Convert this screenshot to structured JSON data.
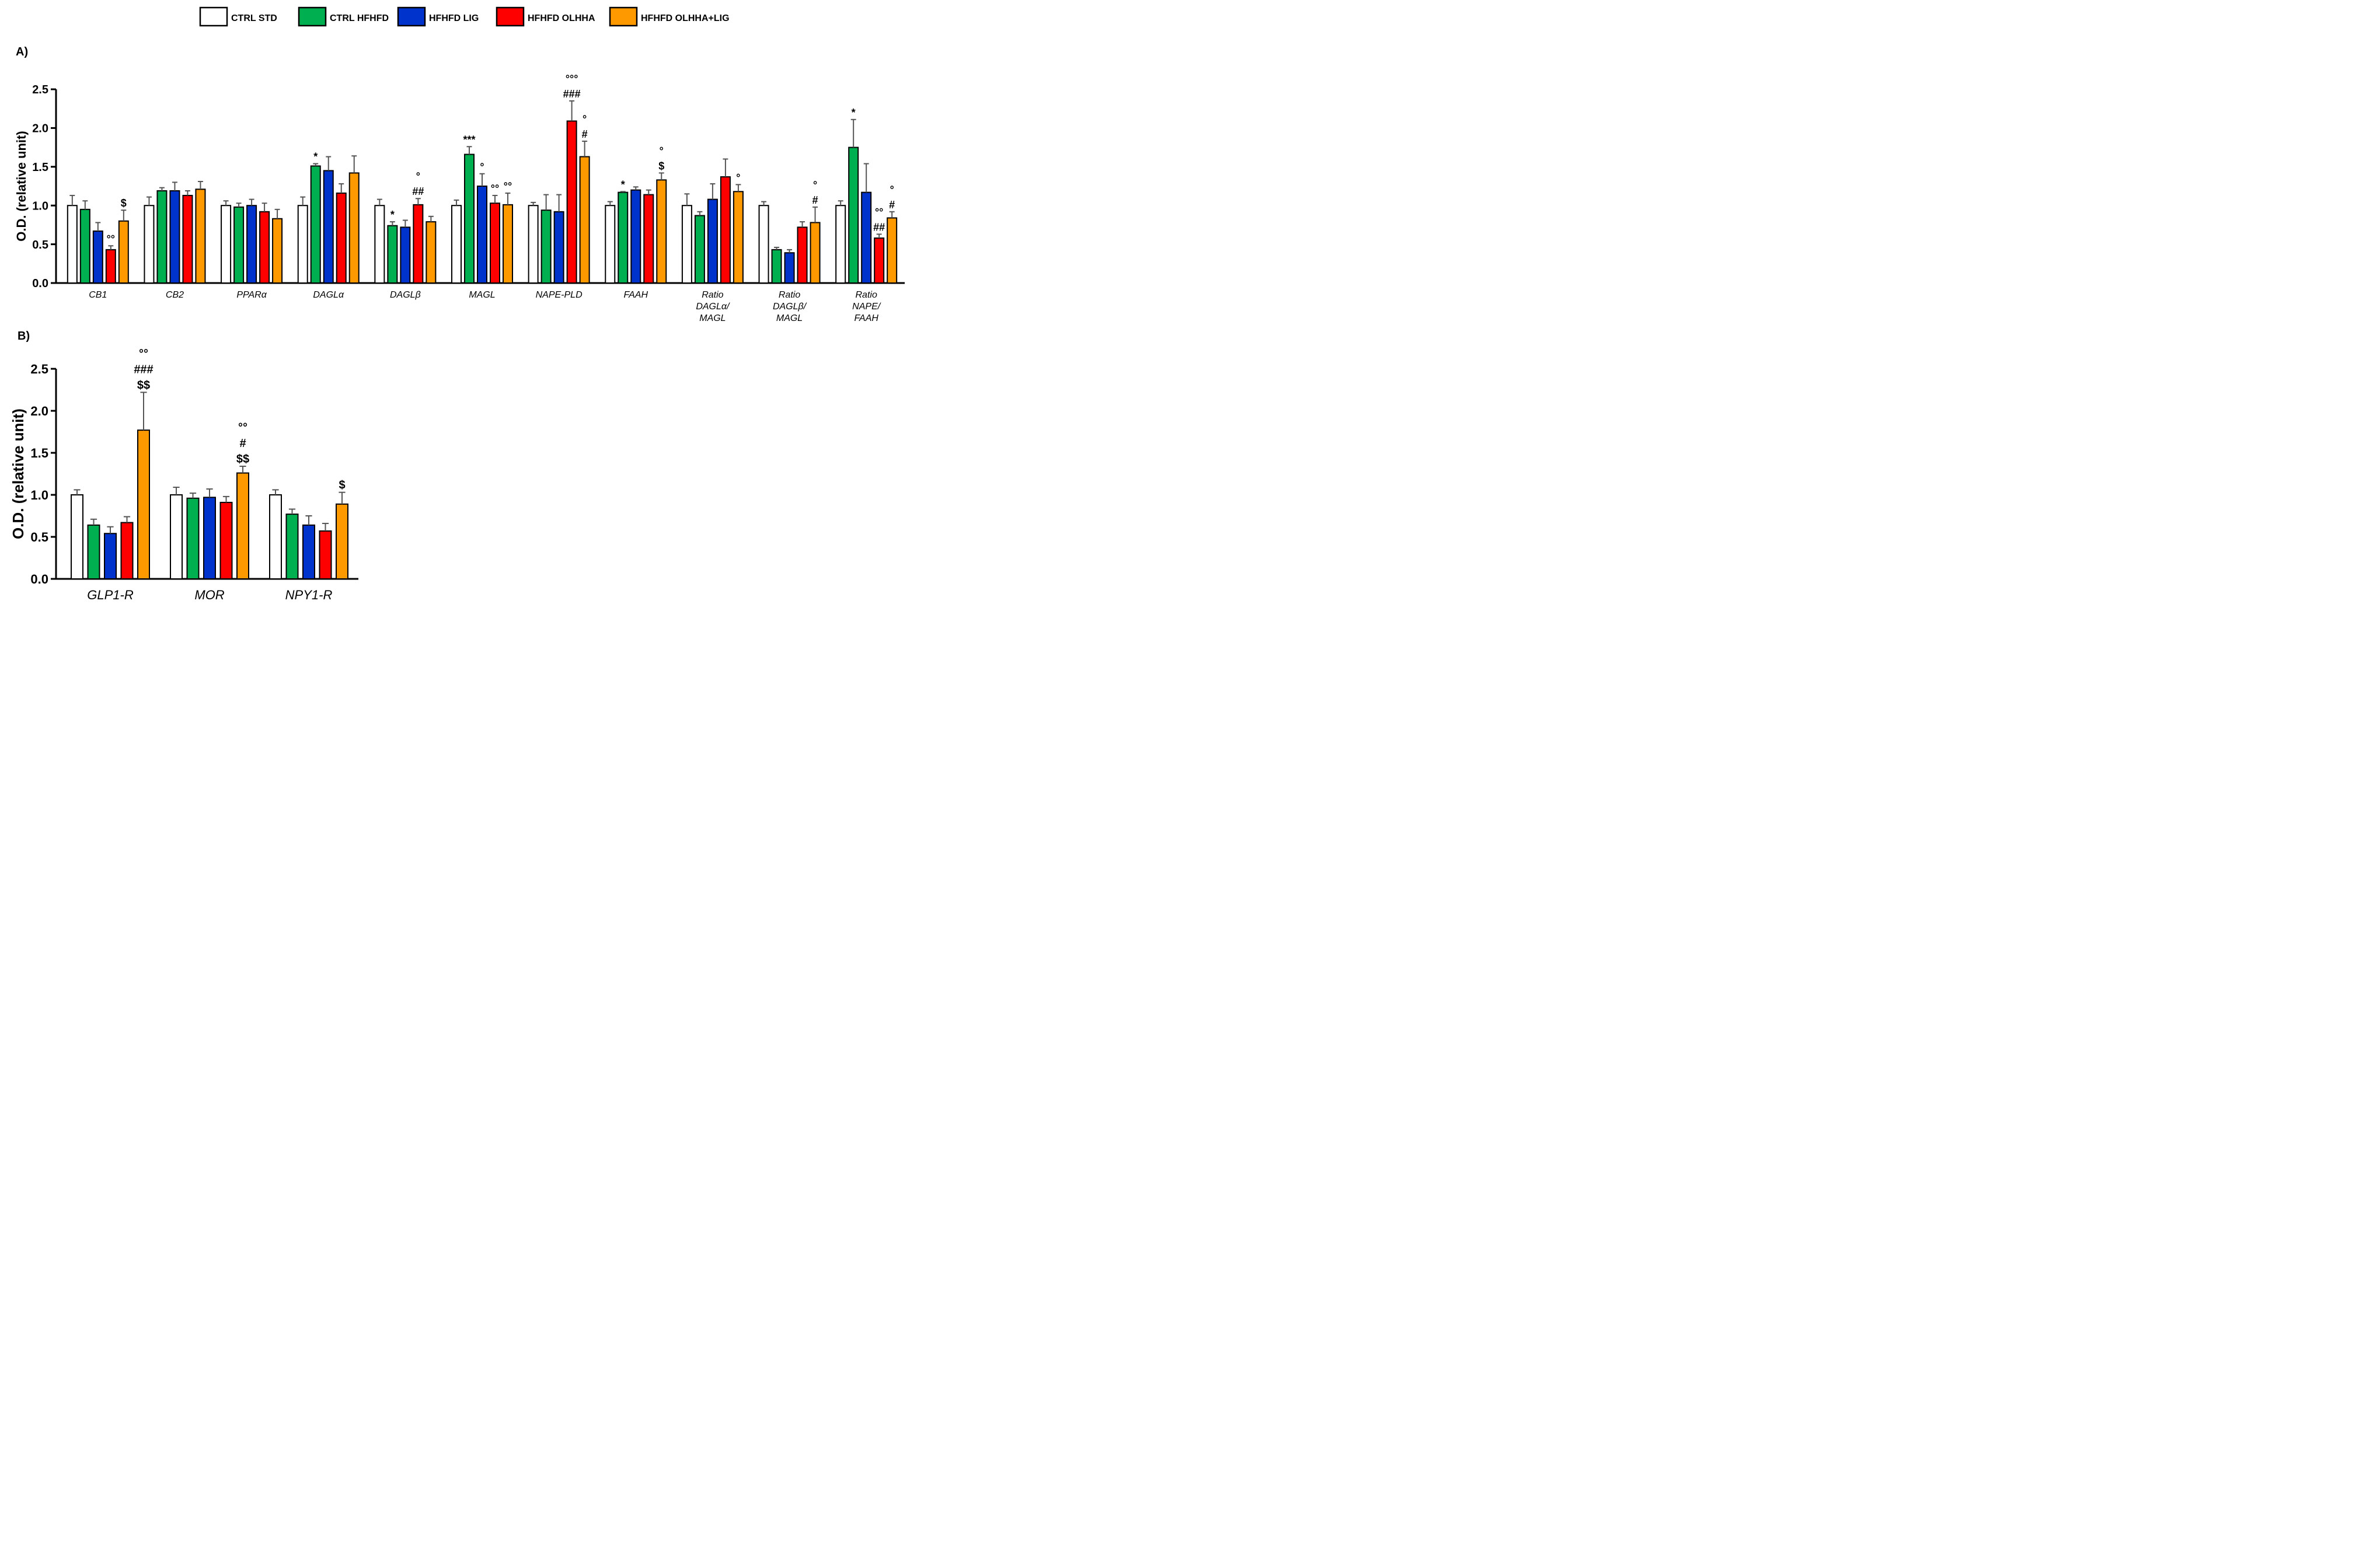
{
  "legend": [
    {
      "label": "CTRL STD",
      "color": "#ffffff"
    },
    {
      "label": "CTRL HFHFD",
      "color": "#00b050"
    },
    {
      "label": "HFHFD LIG",
      "color": "#0033cc"
    },
    {
      "label": "HFHFD OLHHA",
      "color": "#ff0000"
    },
    {
      "label": "HFHFD OLHHA+LIG",
      "color": "#ff9900"
    }
  ],
  "chart_data": [
    {
      "panel": "A)",
      "type": "bar",
      "ylabel": "O.D. (relative unit)",
      "ylim": [
        0,
        2.5
      ],
      "yticks": [
        "0.0",
        "0.5",
        "1.0",
        "1.5",
        "2.0",
        "2.5"
      ],
      "categories": [
        [
          "CB1"
        ],
        [
          "CB2"
        ],
        [
          "PPARα"
        ],
        [
          "DAGLα"
        ],
        [
          "DAGLβ"
        ],
        [
          "MAGL"
        ],
        [
          "NAPE-PLD"
        ],
        [
          "FAAH"
        ],
        [
          "Ratio",
          "DAGLα/",
          "MAGL"
        ],
        [
          "Ratio",
          "DAGLβ/",
          "MAGL"
        ],
        [
          "Ratio",
          "NAPE/",
          "FAAH"
        ]
      ],
      "series": [
        {
          "name": "CTRL STD",
          "values": [
            1.0,
            1.0,
            1.0,
            1.0,
            1.0,
            1.0,
            1.0,
            1.0,
            1.0,
            1.0,
            1.0
          ],
          "errors": [
            0.13,
            0.11,
            0.06,
            0.11,
            0.08,
            0.07,
            0.04,
            0.05,
            0.15,
            0.05,
            0.06
          ]
        },
        {
          "name": "CTRL HFHFD",
          "values": [
            0.95,
            1.19,
            0.98,
            1.51,
            0.74,
            1.66,
            0.94,
            1.17,
            0.87,
            0.43,
            1.75
          ],
          "errors": [
            0.11,
            0.04,
            0.05,
            0.03,
            0.05,
            0.1,
            0.2,
            0.01,
            0.05,
            0.03,
            0.36
          ]
        },
        {
          "name": "HFHFD LIG",
          "values": [
            0.67,
            1.19,
            1.0,
            1.45,
            0.72,
            1.25,
            0.92,
            1.2,
            1.08,
            0.39,
            1.17
          ],
          "errors": [
            0.11,
            0.11,
            0.08,
            0.18,
            0.09,
            0.16,
            0.22,
            0.04,
            0.2,
            0.04,
            0.37
          ]
        },
        {
          "name": "HFHFD OLHHA",
          "values": [
            0.43,
            1.13,
            0.92,
            1.16,
            1.01,
            1.03,
            2.09,
            1.14,
            1.37,
            0.72,
            0.58
          ],
          "errors": [
            0.05,
            0.06,
            0.11,
            0.12,
            0.08,
            0.1,
            0.26,
            0.06,
            0.23,
            0.07,
            0.05
          ]
        },
        {
          "name": "HFHFD OLHHA+LIG",
          "values": [
            0.8,
            1.21,
            0.83,
            1.42,
            0.79,
            1.01,
            1.63,
            1.33,
            1.18,
            0.78,
            0.84
          ],
          "errors": [
            0.14,
            0.1,
            0.12,
            0.22,
            0.07,
            0.15,
            0.2,
            0.09,
            0.09,
            0.2,
            0.08
          ]
        }
      ],
      "annotations": [
        {
          "category": 0,
          "series": 3,
          "lines": [
            "°°"
          ]
        },
        {
          "category": 0,
          "series": 4,
          "lines": [
            "$"
          ]
        },
        {
          "category": 3,
          "series": 1,
          "lines": [
            "*"
          ]
        },
        {
          "category": 4,
          "series": 1,
          "lines": [
            "*"
          ]
        },
        {
          "category": 4,
          "series": 3,
          "lines": [
            "°",
            "##"
          ]
        },
        {
          "category": 5,
          "series": 1,
          "lines": [
            "***"
          ]
        },
        {
          "category": 5,
          "series": 2,
          "lines": [
            "°"
          ]
        },
        {
          "category": 5,
          "series": 3,
          "lines": [
            "°°"
          ]
        },
        {
          "category": 5,
          "series": 4,
          "lines": [
            "°°"
          ]
        },
        {
          "category": 6,
          "series": 3,
          "lines": [
            "°°°",
            "###"
          ]
        },
        {
          "category": 6,
          "series": 4,
          "lines": [
            "°",
            "#"
          ]
        },
        {
          "category": 7,
          "series": 1,
          "lines": [
            "*"
          ]
        },
        {
          "category": 7,
          "series": 4,
          "lines": [
            "°",
            "$"
          ]
        },
        {
          "category": 8,
          "series": 4,
          "lines": [
            "°"
          ]
        },
        {
          "category": 9,
          "series": 4,
          "lines": [
            "°",
            "#"
          ]
        },
        {
          "category": 10,
          "series": 1,
          "lines": [
            "*"
          ]
        },
        {
          "category": 10,
          "series": 3,
          "lines": [
            "°°",
            "##"
          ]
        },
        {
          "category": 10,
          "series": 4,
          "lines": [
            "°",
            "#"
          ]
        }
      ]
    },
    {
      "panel": "B)",
      "type": "bar",
      "ylabel": "O.D. (relative unit)",
      "ylim": [
        0,
        2.5
      ],
      "yticks": [
        "0.0",
        "0.5",
        "1.0",
        "1.5",
        "2.0",
        "2.5"
      ],
      "categories": [
        [
          "GLP1-R"
        ],
        [
          "MOR"
        ],
        [
          "NPY1-R"
        ]
      ],
      "series": [
        {
          "name": "CTRL STD",
          "values": [
            1.0,
            1.0,
            1.0
          ],
          "errors": [
            0.06,
            0.09,
            0.06
          ]
        },
        {
          "name": "CTRL HFHFD",
          "values": [
            0.64,
            0.96,
            0.77
          ],
          "errors": [
            0.07,
            0.06,
            0.06
          ]
        },
        {
          "name": "HFHFD LIG",
          "values": [
            0.54,
            0.97,
            0.64
          ],
          "errors": [
            0.08,
            0.1,
            0.11
          ]
        },
        {
          "name": "HFHFD OLHHA",
          "values": [
            0.67,
            0.91,
            0.57
          ],
          "errors": [
            0.07,
            0.07,
            0.09
          ]
        },
        {
          "name": "HFHFD OLHHA+LIG",
          "values": [
            1.77,
            1.26,
            0.89
          ],
          "errors": [
            0.45,
            0.08,
            0.14
          ]
        }
      ],
      "annotations": [
        {
          "category": 0,
          "series": 4,
          "lines": [
            "°°",
            "###",
            "$$"
          ]
        },
        {
          "category": 1,
          "series": 4,
          "lines": [
            "°°",
            "#",
            "$$"
          ]
        },
        {
          "category": 2,
          "series": 4,
          "lines": [
            "$"
          ]
        }
      ]
    }
  ]
}
